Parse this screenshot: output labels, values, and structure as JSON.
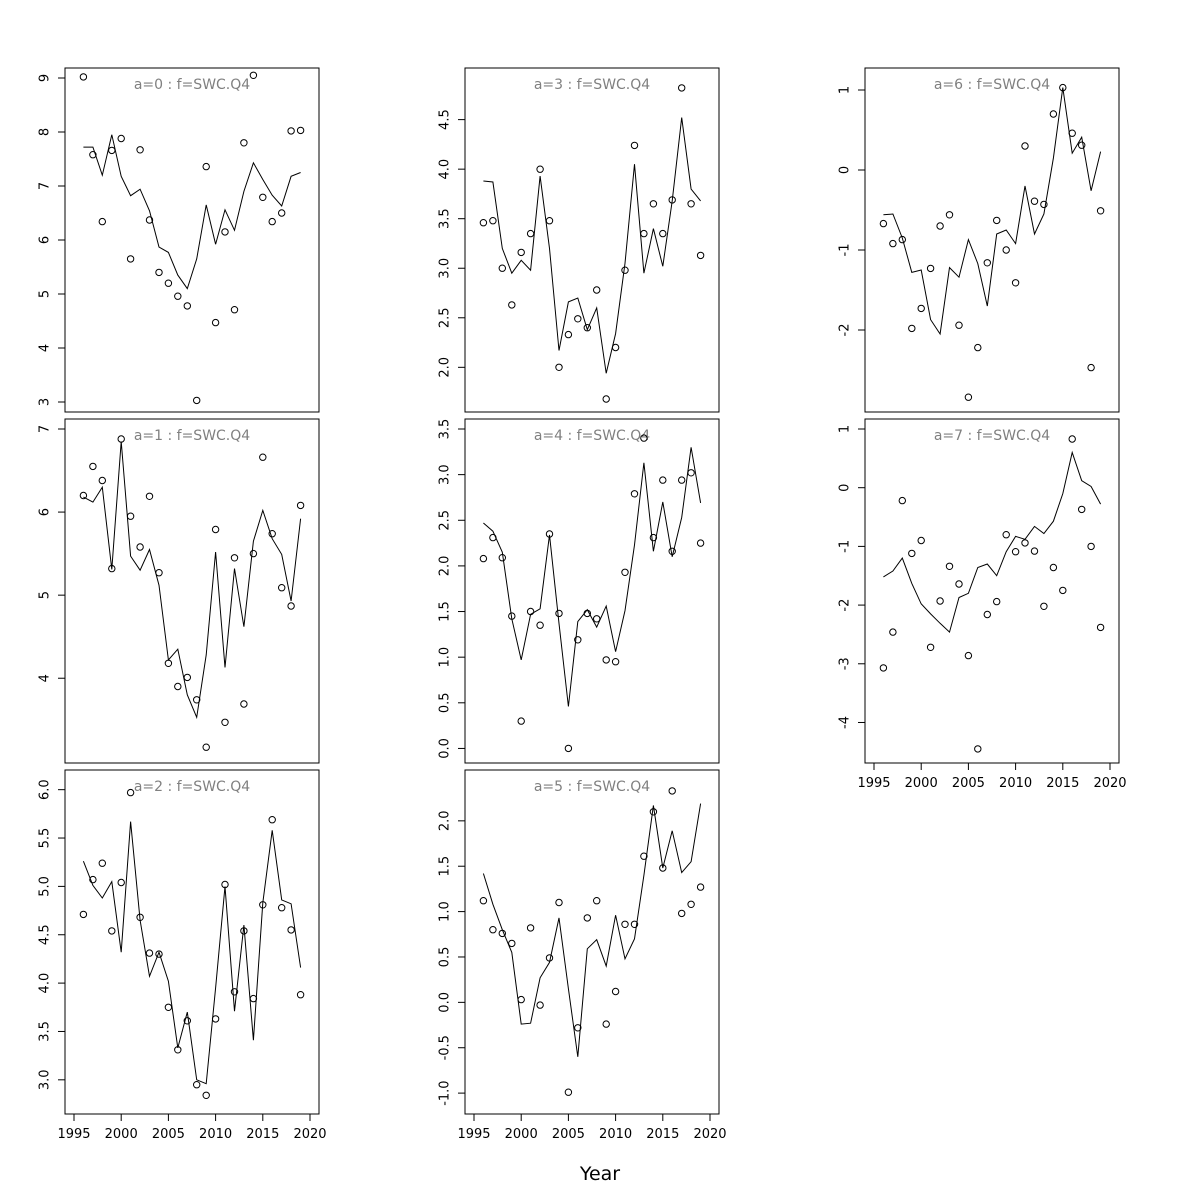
{
  "figure": {
    "xlabel": "Year"
  },
  "chart_data": [
    {
      "type": "scatter",
      "title": "a=0  :  f=SWC.Q4",
      "xlabel": "",
      "ylabel": "",
      "xlim": [
        1995,
        2020
      ],
      "ylim": [
        3,
        9
      ],
      "x_ticks": [
        1995,
        2000,
        2005,
        2010,
        2015,
        2020
      ],
      "y_ticks": [
        3,
        4,
        5,
        6,
        7,
        8,
        9
      ],
      "x_ticks_shown": false,
      "series": [
        {
          "kind": "points",
          "x": [
            1996,
            1997,
            1998,
            1999,
            2000,
            2001,
            2002,
            2003,
            2004,
            2005,
            2006,
            2007,
            2008,
            2009,
            2010,
            2011,
            2012,
            2013,
            2014,
            2015,
            2016,
            2017,
            2018,
            2019
          ],
          "y": [
            9.02,
            7.58,
            6.34,
            7.66,
            7.88,
            5.65,
            7.67,
            6.37,
            5.4,
            5.2,
            4.96,
            4.78,
            3.03,
            7.36,
            4.47,
            6.15,
            4.71,
            7.8,
            9.05,
            6.79,
            6.34,
            6.5,
            8.02,
            8.03
          ]
        },
        {
          "kind": "line",
          "x": [
            1996,
            1997,
            1998,
            1999,
            2000,
            2001,
            2002,
            2003,
            2004,
            2005,
            2006,
            2007,
            2008,
            2009,
            2010,
            2011,
            2012,
            2013,
            2014,
            2015,
            2016,
            2017,
            2018,
            2019
          ],
          "y": [
            7.72,
            7.72,
            7.2,
            7.95,
            7.18,
            6.82,
            6.94,
            6.54,
            5.87,
            5.77,
            5.35,
            5.1,
            5.65,
            6.65,
            5.92,
            6.56,
            6.18,
            6.9,
            7.43,
            7.12,
            6.83,
            6.63,
            7.18,
            7.25
          ]
        }
      ]
    },
    {
      "type": "scatter",
      "title": "a=1  :  f=SWC.Q4",
      "xlabel": "",
      "ylabel": "",
      "xlim": [
        1995,
        2020
      ],
      "ylim": [
        3.1,
        7
      ],
      "x_ticks": [
        1995,
        2000,
        2005,
        2010,
        2015,
        2020
      ],
      "y_ticks": [
        4,
        5,
        6,
        7
      ],
      "x_ticks_shown": false,
      "series": [
        {
          "kind": "points",
          "x": [
            1996,
            1997,
            1998,
            1999,
            2000,
            2001,
            2002,
            2003,
            2004,
            2005,
            2006,
            2007,
            2008,
            2009,
            2010,
            2011,
            2012,
            2013,
            2014,
            2015,
            2016,
            2017,
            2018,
            2019
          ],
          "y": [
            6.2,
            6.55,
            6.38,
            5.32,
            6.88,
            5.95,
            5.58,
            6.19,
            5.27,
            4.18,
            3.9,
            4.01,
            3.74,
            3.17,
            5.79,
            3.47,
            5.45,
            3.69,
            5.5,
            6.66,
            5.74,
            5.09,
            4.87,
            6.08
          ]
        },
        {
          "kind": "line",
          "x": [
            1996,
            1997,
            1998,
            1999,
            2000,
            2001,
            2002,
            2003,
            2004,
            2005,
            2006,
            2007,
            2008,
            2009,
            2010,
            2011,
            2012,
            2013,
            2014,
            2015,
            2016,
            2017,
            2018,
            2019
          ],
          "y": [
            6.18,
            6.12,
            6.3,
            5.31,
            6.85,
            5.47,
            5.3,
            5.55,
            5.12,
            4.22,
            4.35,
            3.8,
            3.53,
            4.28,
            5.52,
            4.13,
            5.32,
            4.62,
            5.65,
            6.02,
            5.68,
            5.49,
            4.93,
            5.92
          ]
        }
      ]
    },
    {
      "type": "scatter",
      "title": "a=2  :  f=SWC.Q4",
      "xlabel": "",
      "ylabel": "",
      "xlim": [
        1995,
        2020
      ],
      "ylim": [
        2.75,
        6.1
      ],
      "x_ticks": [
        1995,
        2000,
        2005,
        2010,
        2015,
        2020
      ],
      "y_ticks": [
        3.0,
        3.5,
        4.0,
        4.5,
        5.0,
        5.5,
        6.0
      ],
      "x_ticks_shown": true,
      "series": [
        {
          "kind": "points",
          "x": [
            1996,
            1997,
            1998,
            1999,
            2000,
            2001,
            2002,
            2003,
            2004,
            2005,
            2006,
            2007,
            2008,
            2009,
            2010,
            2011,
            2012,
            2013,
            2014,
            2015,
            2016,
            2017,
            2018,
            2019
          ],
          "y": [
            4.71,
            5.07,
            5.24,
            4.54,
            5.04,
            5.97,
            4.68,
            4.31,
            4.3,
            3.75,
            3.31,
            3.61,
            2.95,
            2.84,
            3.63,
            5.02,
            3.91,
            4.54,
            3.84,
            4.81,
            5.69,
            4.78,
            4.55,
            3.88
          ]
        },
        {
          "kind": "line",
          "x": [
            1996,
            1997,
            1998,
            1999,
            2000,
            2001,
            2002,
            2003,
            2004,
            2005,
            2006,
            2007,
            2008,
            2009,
            2010,
            2011,
            2012,
            2013,
            2014,
            2015,
            2016,
            2017,
            2018,
            2019
          ],
          "y": [
            5.26,
            5.01,
            4.88,
            5.05,
            4.32,
            5.67,
            4.65,
            4.07,
            4.32,
            4.02,
            3.33,
            3.7,
            3.0,
            2.96,
            3.95,
            5.0,
            3.71,
            4.6,
            3.41,
            4.83,
            5.58,
            4.86,
            4.82,
            4.16
          ]
        }
      ]
    },
    {
      "type": "scatter",
      "title": "a=3  :  f=SWC.Q4",
      "xlabel": "",
      "ylabel": "",
      "xlim": [
        1995,
        2020
      ],
      "ylim": [
        1.65,
        4.92
      ],
      "x_ticks": [
        1995,
        2000,
        2005,
        2010,
        2015,
        2020
      ],
      "y_ticks": [
        2.0,
        2.5,
        3.0,
        3.5,
        4.0,
        4.5
      ],
      "x_ticks_shown": false,
      "series": [
        {
          "kind": "points",
          "x": [
            1996,
            1997,
            1998,
            1999,
            2000,
            2001,
            2002,
            2003,
            2004,
            2005,
            2006,
            2007,
            2008,
            2009,
            2010,
            2011,
            2012,
            2013,
            2014,
            2015,
            2016,
            2017,
            2018,
            2019
          ],
          "y": [
            3.46,
            3.48,
            3.0,
            2.63,
            3.16,
            3.35,
            4.0,
            3.48,
            2.0,
            2.33,
            2.49,
            2.4,
            2.78,
            1.68,
            2.2,
            2.98,
            4.24,
            3.35,
            3.65,
            3.35,
            3.69,
            4.82,
            3.65,
            3.13
          ]
        },
        {
          "kind": "line",
          "x": [
            1996,
            1997,
            1998,
            1999,
            2000,
            2001,
            2002,
            2003,
            2004,
            2005,
            2006,
            2007,
            2008,
            2009,
            2010,
            2011,
            2012,
            2013,
            2014,
            2015,
            2016,
            2017,
            2018,
            2019
          ],
          "y": [
            3.88,
            3.87,
            3.2,
            2.95,
            3.08,
            2.98,
            3.93,
            3.2,
            2.17,
            2.66,
            2.7,
            2.38,
            2.6,
            1.94,
            2.34,
            3.05,
            4.05,
            2.95,
            3.4,
            3.02,
            3.68,
            4.52,
            3.8,
            3.68
          ]
        }
      ]
    },
    {
      "type": "scatter",
      "title": "a=4  :  f=SWC.Q4",
      "xlabel": "",
      "ylabel": "",
      "xlim": [
        1995,
        2020
      ],
      "ylim": [
        -0.05,
        3.5
      ],
      "x_ticks": [
        1995,
        2000,
        2005,
        2010,
        2015,
        2020
      ],
      "y_ticks": [
        0.0,
        0.5,
        1.0,
        1.5,
        2.0,
        2.5,
        3.0,
        3.5
      ],
      "x_ticks_shown": false,
      "series": [
        {
          "kind": "points",
          "x": [
            1996,
            1997,
            1998,
            1999,
            2000,
            2001,
            2002,
            2003,
            2004,
            2005,
            2006,
            2007,
            2008,
            2009,
            2010,
            2011,
            2012,
            2013,
            2014,
            2015,
            2016,
            2017,
            2018,
            2019
          ],
          "y": [
            2.08,
            2.31,
            2.09,
            1.45,
            0.3,
            1.5,
            1.35,
            2.35,
            1.48,
            0.0,
            1.19,
            1.48,
            1.42,
            0.97,
            0.95,
            1.93,
            2.79,
            3.4,
            2.31,
            2.94,
            2.16,
            2.94,
            3.02,
            2.25
          ]
        },
        {
          "kind": "line",
          "x": [
            1996,
            1997,
            1998,
            1999,
            2000,
            2001,
            2002,
            2003,
            2004,
            2005,
            2006,
            2007,
            2008,
            2009,
            2010,
            2011,
            2012,
            2013,
            2014,
            2015,
            2016,
            2017,
            2018,
            2019
          ],
          "y": [
            2.47,
            2.38,
            2.15,
            1.42,
            0.97,
            1.47,
            1.53,
            2.34,
            1.37,
            0.46,
            1.39,
            1.52,
            1.33,
            1.56,
            1.06,
            1.51,
            2.23,
            3.13,
            2.16,
            2.7,
            2.1,
            2.53,
            3.3,
            2.69
          ]
        }
      ]
    },
    {
      "type": "scatter",
      "title": "a=5  :  f=SWC.Q4",
      "xlabel": "",
      "ylabel": "",
      "xlim": [
        1995,
        2020
      ],
      "ylim": [
        -1.12,
        2.45
      ],
      "x_ticks": [
        1995,
        2000,
        2005,
        2010,
        2015,
        2020
      ],
      "y_ticks": [
        -1.0,
        -0.5,
        0.0,
        0.5,
        1.0,
        1.5,
        2.0
      ],
      "x_ticks_shown": true,
      "series": [
        {
          "kind": "points",
          "x": [
            1996,
            1997,
            1998,
            1999,
            2000,
            2001,
            2002,
            2003,
            2004,
            2005,
            2006,
            2007,
            2008,
            2009,
            2010,
            2011,
            2012,
            2013,
            2014,
            2015,
            2016,
            2017,
            2018,
            2019
          ],
          "y": [
            1.12,
            0.8,
            0.76,
            0.65,
            0.03,
            0.82,
            -0.03,
            0.49,
            1.1,
            -0.99,
            -0.28,
            0.93,
            1.12,
            -0.24,
            0.12,
            0.86,
            0.86,
            1.61,
            2.1,
            1.48,
            2.33,
            0.98,
            1.08,
            1.27
          ]
        },
        {
          "kind": "line",
          "x": [
            1996,
            1997,
            1998,
            1999,
            2000,
            2001,
            2002,
            2003,
            2004,
            2005,
            2006,
            2007,
            2008,
            2009,
            2010,
            2011,
            2012,
            2013,
            2014,
            2015,
            2016,
            2017,
            2018,
            2019
          ],
          "y": [
            1.42,
            1.08,
            0.8,
            0.55,
            -0.24,
            -0.23,
            0.27,
            0.44,
            0.93,
            0.15,
            -0.6,
            0.59,
            0.69,
            0.4,
            0.96,
            0.48,
            0.7,
            1.4,
            2.17,
            1.48,
            1.89,
            1.43,
            1.55,
            2.19
          ]
        }
      ]
    },
    {
      "type": "scatter",
      "title": "a=6  :  f=SWC.Q4",
      "xlabel": "",
      "ylabel": "",
      "xlim": [
        1995,
        2020
      ],
      "ylim": [
        -2.9,
        1.15
      ],
      "x_ticks": [
        1995,
        2000,
        2005,
        2010,
        2015,
        2020
      ],
      "y_ticks": [
        -2,
        -1,
        0,
        1
      ],
      "x_ticks_shown": false,
      "series": [
        {
          "kind": "points",
          "x": [
            1996,
            1997,
            1998,
            1999,
            2000,
            2001,
            2002,
            2003,
            2004,
            2005,
            2006,
            2007,
            2008,
            2009,
            2010,
            2011,
            2012,
            2013,
            2014,
            2015,
            2016,
            2017,
            2018,
            2019
          ],
          "y": [
            -0.67,
            -0.92,
            -0.87,
            -1.98,
            -1.73,
            -1.23,
            -0.7,
            -0.56,
            -1.94,
            -2.84,
            -2.22,
            -1.16,
            -0.63,
            -1.0,
            -1.41,
            0.3,
            -0.39,
            -0.43,
            0.7,
            1.03,
            0.46,
            0.31,
            -2.47,
            -0.51
          ]
        },
        {
          "kind": "line",
          "x": [
            1996,
            1997,
            1998,
            1999,
            2000,
            2001,
            2002,
            2003,
            2004,
            2005,
            2006,
            2007,
            2008,
            2009,
            2010,
            2011,
            2012,
            2013,
            2014,
            2015,
            2016,
            2017,
            2018,
            2019
          ],
          "y": [
            -0.56,
            -0.55,
            -0.85,
            -1.28,
            -1.25,
            -1.87,
            -2.05,
            -1.22,
            -1.34,
            -0.87,
            -1.17,
            -1.7,
            -0.8,
            -0.75,
            -0.92,
            -0.2,
            -0.8,
            -0.55,
            0.15,
            1.03,
            0.21,
            0.41,
            -0.26,
            0.23
          ]
        }
      ]
    },
    {
      "type": "scatter",
      "title": "a=7  :  f=SWC.Q4",
      "xlabel": "",
      "ylabel": "",
      "xlim": [
        1995,
        2020
      ],
      "ylim": [
        -4.52,
        1.0
      ],
      "x_ticks": [
        1995,
        2000,
        2005,
        2010,
        2015,
        2020
      ],
      "y_ticks": [
        -4,
        -3,
        -2,
        -1,
        0,
        1
      ],
      "x_ticks_shown": true,
      "series": [
        {
          "kind": "points",
          "x": [
            1996,
            1997,
            1998,
            1999,
            2000,
            2001,
            2002,
            2003,
            2004,
            2005,
            2006,
            2007,
            2008,
            2009,
            2010,
            2011,
            2012,
            2013,
            2014,
            2015,
            2016,
            2017,
            2018,
            2019
          ],
          "y": [
            -3.07,
            -2.46,
            -0.22,
            -1.12,
            -0.9,
            -2.72,
            -1.93,
            -1.34,
            -1.64,
            -2.86,
            -4.45,
            -2.16,
            -1.94,
            -0.8,
            -1.09,
            -0.94,
            -1.08,
            -2.02,
            -1.36,
            -1.75,
            0.83,
            -0.37,
            -1.0,
            -2.38
          ]
        },
        {
          "kind": "line",
          "x": [
            1996,
            1997,
            1998,
            1999,
            2000,
            2001,
            2002,
            2003,
            2004,
            2005,
            2006,
            2007,
            2008,
            2009,
            2010,
            2011,
            2012,
            2013,
            2014,
            2015,
            2016,
            2017,
            2018,
            2019
          ],
          "y": [
            -1.52,
            -1.42,
            -1.2,
            -1.63,
            -1.98,
            -2.15,
            -2.31,
            -2.46,
            -1.87,
            -1.8,
            -1.36,
            -1.3,
            -1.5,
            -1.09,
            -0.83,
            -0.88,
            -0.66,
            -0.78,
            -0.57,
            -0.1,
            0.6,
            0.12,
            0.02,
            -0.28
          ]
        }
      ]
    }
  ]
}
